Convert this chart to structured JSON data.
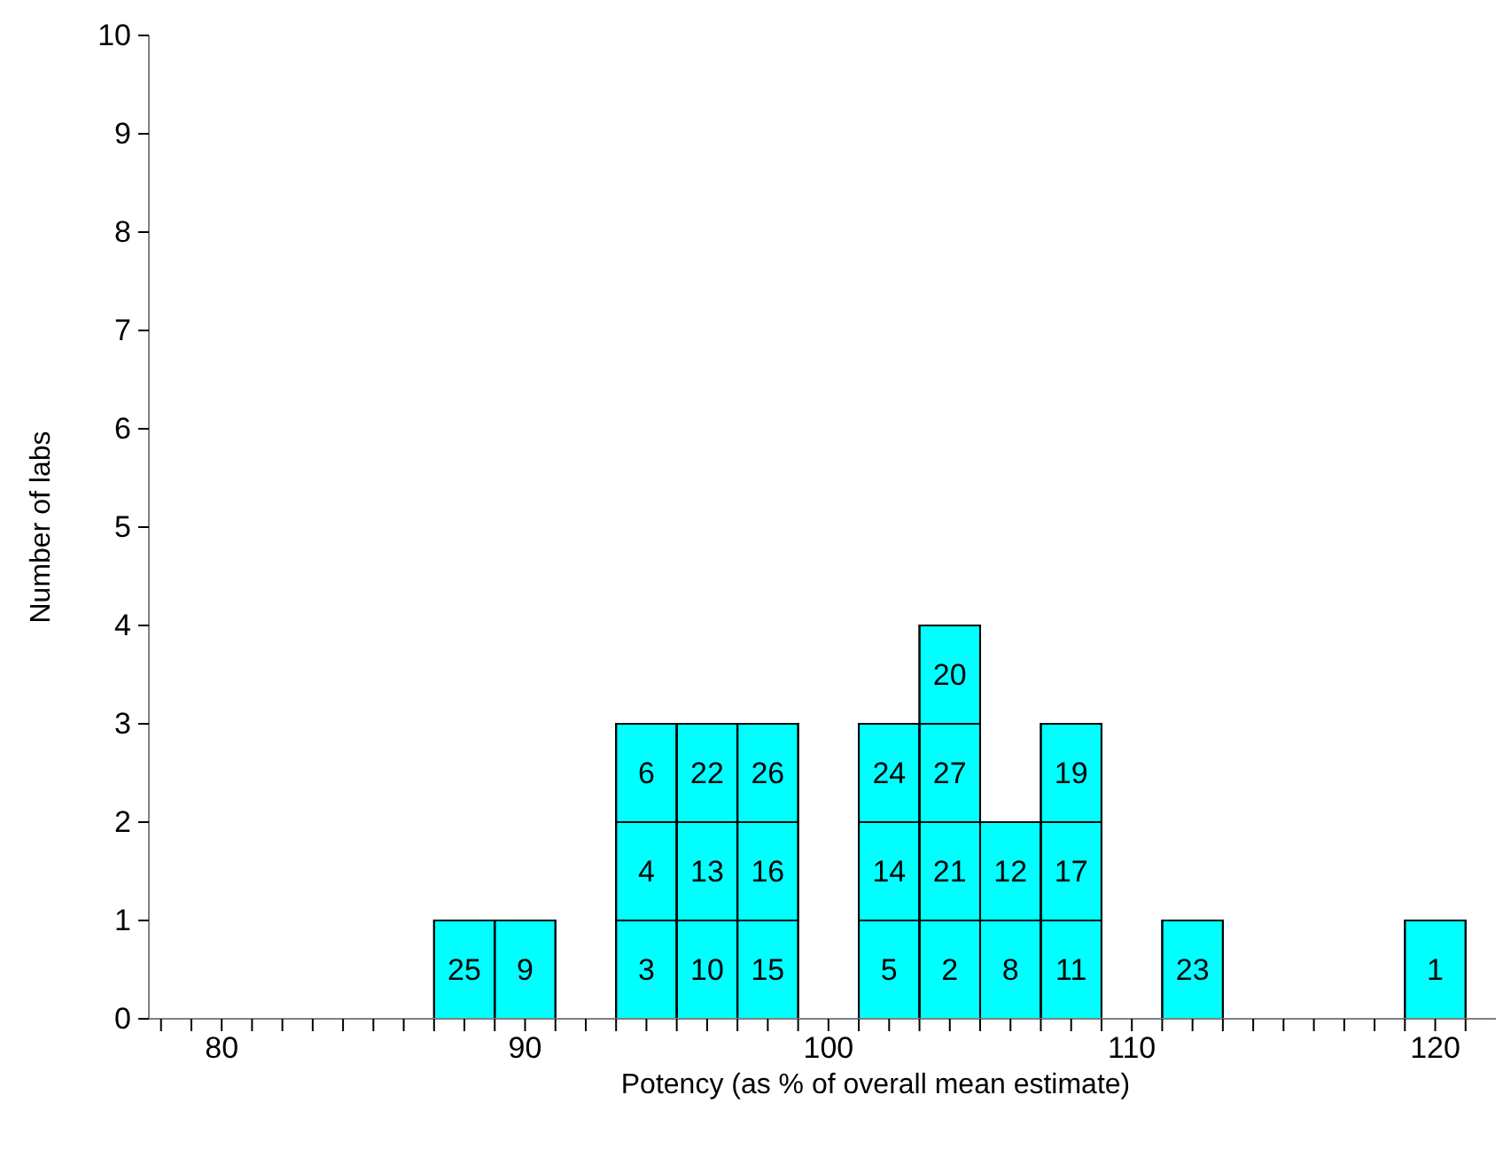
{
  "chart_data": {
    "type": "histogram",
    "xlabel": "Potency (as % of overall mean estimate)",
    "ylabel": "Number of labs",
    "bins": [
      87,
      89,
      91,
      93,
      95,
      97,
      99,
      101,
      103,
      105,
      107,
      109,
      111,
      113,
      115,
      117,
      119,
      121
    ],
    "values": [
      1,
      1,
      0,
      3,
      3,
      3,
      0,
      3,
      4,
      2,
      3,
      0,
      1,
      0,
      0,
      0,
      1
    ],
    "color": "#00ffff",
    "xlim": [
      77.6,
      122
    ],
    "xticks": [
      {
        "value": 78,
        "label": null
      },
      {
        "value": 79,
        "label": null
      },
      80,
      {
        "value": 81,
        "label": null
      },
      {
        "value": 82,
        "label": null
      },
      {
        "value": 83,
        "label": null
      },
      {
        "value": 84,
        "label": null
      },
      {
        "value": 85,
        "label": null
      },
      {
        "value": 86,
        "label": null
      },
      {
        "value": 87,
        "label": null
      },
      {
        "value": 88,
        "label": null
      },
      {
        "value": 89,
        "label": null
      },
      90,
      {
        "value": 91,
        "label": null
      },
      {
        "value": 92,
        "label": null
      },
      {
        "value": 93,
        "label": null
      },
      {
        "value": 94,
        "label": null
      },
      {
        "value": 95,
        "label": null
      },
      {
        "value": 96,
        "label": null
      },
      {
        "value": 97,
        "label": null
      },
      {
        "value": 98,
        "label": null
      },
      {
        "value": 99,
        "label": null
      },
      100,
      {
        "value": 101,
        "label": null
      },
      {
        "value": 102,
        "label": null
      },
      {
        "value": 103,
        "label": null
      },
      {
        "value": 104,
        "label": null
      },
      {
        "value": 105,
        "label": null
      },
      {
        "value": 106,
        "label": null
      },
      {
        "value": 107,
        "label": null
      },
      {
        "value": 108,
        "label": null
      },
      {
        "value": 109,
        "label": null
      },
      110,
      {
        "value": 111,
        "label": null
      },
      {
        "value": 112,
        "label": null
      },
      {
        "value": 113,
        "label": null
      },
      {
        "value": 114,
        "label": null
      },
      {
        "value": 115,
        "label": null
      },
      {
        "value": 116,
        "label": null
      },
      {
        "value": 117,
        "label": null
      },
      {
        "value": 118,
        "label": null
      },
      {
        "value": 119,
        "label": null
      },
      120,
      {
        "value": 121,
        "label": null
      }
    ],
    "ylim": [
      0,
      10
    ],
    "yticks": [
      0,
      1,
      2,
      3,
      4,
      5,
      6,
      7,
      8,
      9,
      10
    ],
    "grid": false,
    "annotations": [
      "25",
      "9",
      "3",
      "4",
      "6",
      "10",
      "13",
      "22",
      "15",
      "16",
      "26",
      "5",
      "14",
      "24",
      "2",
      "21",
      "27",
      "20",
      "8",
      "12",
      "11",
      "17",
      "19",
      "23",
      "1"
    ]
  }
}
